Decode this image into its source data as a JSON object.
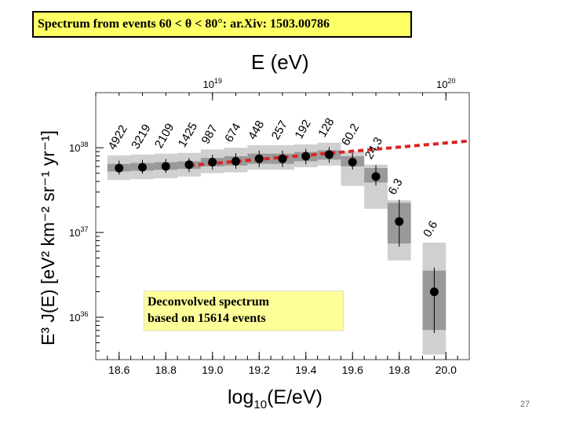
{
  "title": "Spectrum from events 60 < θ < 80°: ar.Xiv: 1503.00786",
  "note": {
    "line1": "Deconvolved spectrum",
    "line2": "based on 15614 events"
  },
  "page_number": "27",
  "axis_labels": {
    "top": "E (eV)",
    "y": "E³ J(E)  [eV² km⁻² sr⁻¹ yr⁻¹]",
    "x_main": "log",
    "x_sub": "10",
    "x_rest": "(E/eV)"
  },
  "chart_data": {
    "type": "scatter",
    "title": "Spectrum from events 60 < θ < 80°: ar.Xiv: 1503.00786",
    "xlabel": "log10(E/eV)",
    "ylabel": "E^3 J(E) [eV^2 km^-2 sr^-1 yr^-1]",
    "top_xlabel": "E (eV)",
    "xlim": [
      18.5,
      20.1
    ],
    "ylim_log10": [
      35.5,
      38.65
    ],
    "x_ticks": [
      "18.6",
      "18.8",
      "19.0",
      "19.2",
      "19.4",
      "19.6",
      "19.8",
      "20.0"
    ],
    "y_ticks": [
      {
        "base": "10",
        "exp": "38",
        "log": 38
      },
      {
        "base": "10",
        "exp": "37",
        "log": 37
      },
      {
        "base": "10",
        "exp": "36",
        "log": 36
      }
    ],
    "top_ticks": [
      {
        "base": "10",
        "exp": "19",
        "log": 19
      },
      {
        "base": "10",
        "exp": "20",
        "log": 20
      }
    ],
    "points": [
      {
        "x": 18.6,
        "y": 37.76,
        "count": "4922",
        "stat_lo": 37.72,
        "stat_hi": 37.81,
        "sys_lo": 37.62,
        "sys_hi": 37.91
      },
      {
        "x": 18.7,
        "y": 37.77,
        "count": "3219",
        "stat_lo": 37.73,
        "stat_hi": 37.82,
        "sys_lo": 37.63,
        "sys_hi": 37.92
      },
      {
        "x": 18.8,
        "y": 37.78,
        "count": "2109",
        "stat_lo": 37.74,
        "stat_hi": 37.83,
        "sys_lo": 37.64,
        "sys_hi": 37.93
      },
      {
        "x": 18.9,
        "y": 37.8,
        "count": "1425",
        "stat_lo": 37.75,
        "stat_hi": 37.84,
        "sys_lo": 37.66,
        "sys_hi": 37.94
      },
      {
        "x": 19.0,
        "y": 37.83,
        "count": "987",
        "stat_lo": 37.78,
        "stat_hi": 37.88,
        "sys_lo": 37.7,
        "sys_hi": 37.98
      },
      {
        "x": 19.1,
        "y": 37.84,
        "count": "674",
        "stat_lo": 37.79,
        "stat_hi": 37.9,
        "sys_lo": 37.71,
        "sys_hi": 38.0
      },
      {
        "x": 19.2,
        "y": 37.87,
        "count": "448",
        "stat_lo": 37.81,
        "stat_hi": 37.93,
        "sys_lo": 37.74,
        "sys_hi": 38.03
      },
      {
        "x": 19.3,
        "y": 37.87,
        "count": "257",
        "stat_lo": 37.81,
        "stat_hi": 37.93,
        "sys_lo": 37.74,
        "sys_hi": 38.03
      },
      {
        "x": 19.4,
        "y": 37.9,
        "count": "192",
        "stat_lo": 37.84,
        "stat_hi": 37.95,
        "sys_lo": 37.77,
        "sys_hi": 38.04
      },
      {
        "x": 19.5,
        "y": 37.92,
        "count": "128",
        "stat_lo": 37.86,
        "stat_hi": 37.97,
        "sys_lo": 37.79,
        "sys_hi": 38.06
      },
      {
        "x": 19.6,
        "y": 37.83,
        "count": "60.2",
        "stat_lo": 37.78,
        "stat_hi": 37.9,
        "sys_lo": 37.55,
        "sys_hi": 37.96
      },
      {
        "x": 19.7,
        "y": 37.66,
        "count": "24.3",
        "stat_lo": 37.59,
        "stat_hi": 37.76,
        "sys_lo": 37.28,
        "sys_hi": 37.8
      },
      {
        "x": 19.8,
        "y": 37.13,
        "count": "6.3",
        "stat_lo": 36.87,
        "stat_hi": 37.35,
        "sys_lo": 36.67,
        "sys_hi": 37.38
      },
      {
        "x": 19.95,
        "y": 36.3,
        "count": "0.6",
        "stat_lo": 35.85,
        "stat_hi": 36.55,
        "sys_lo": 35.56,
        "sys_hi": 36.88
      }
    ],
    "fit_line": {
      "x1": 18.9,
      "y1": 37.79,
      "x2": 20.1,
      "y2": 38.08,
      "color": "#dd2222",
      "style": "dashed"
    },
    "colors": {
      "sys_band": "#d0d0d0",
      "stat_band": "#999999",
      "marker": "#000000"
    }
  }
}
